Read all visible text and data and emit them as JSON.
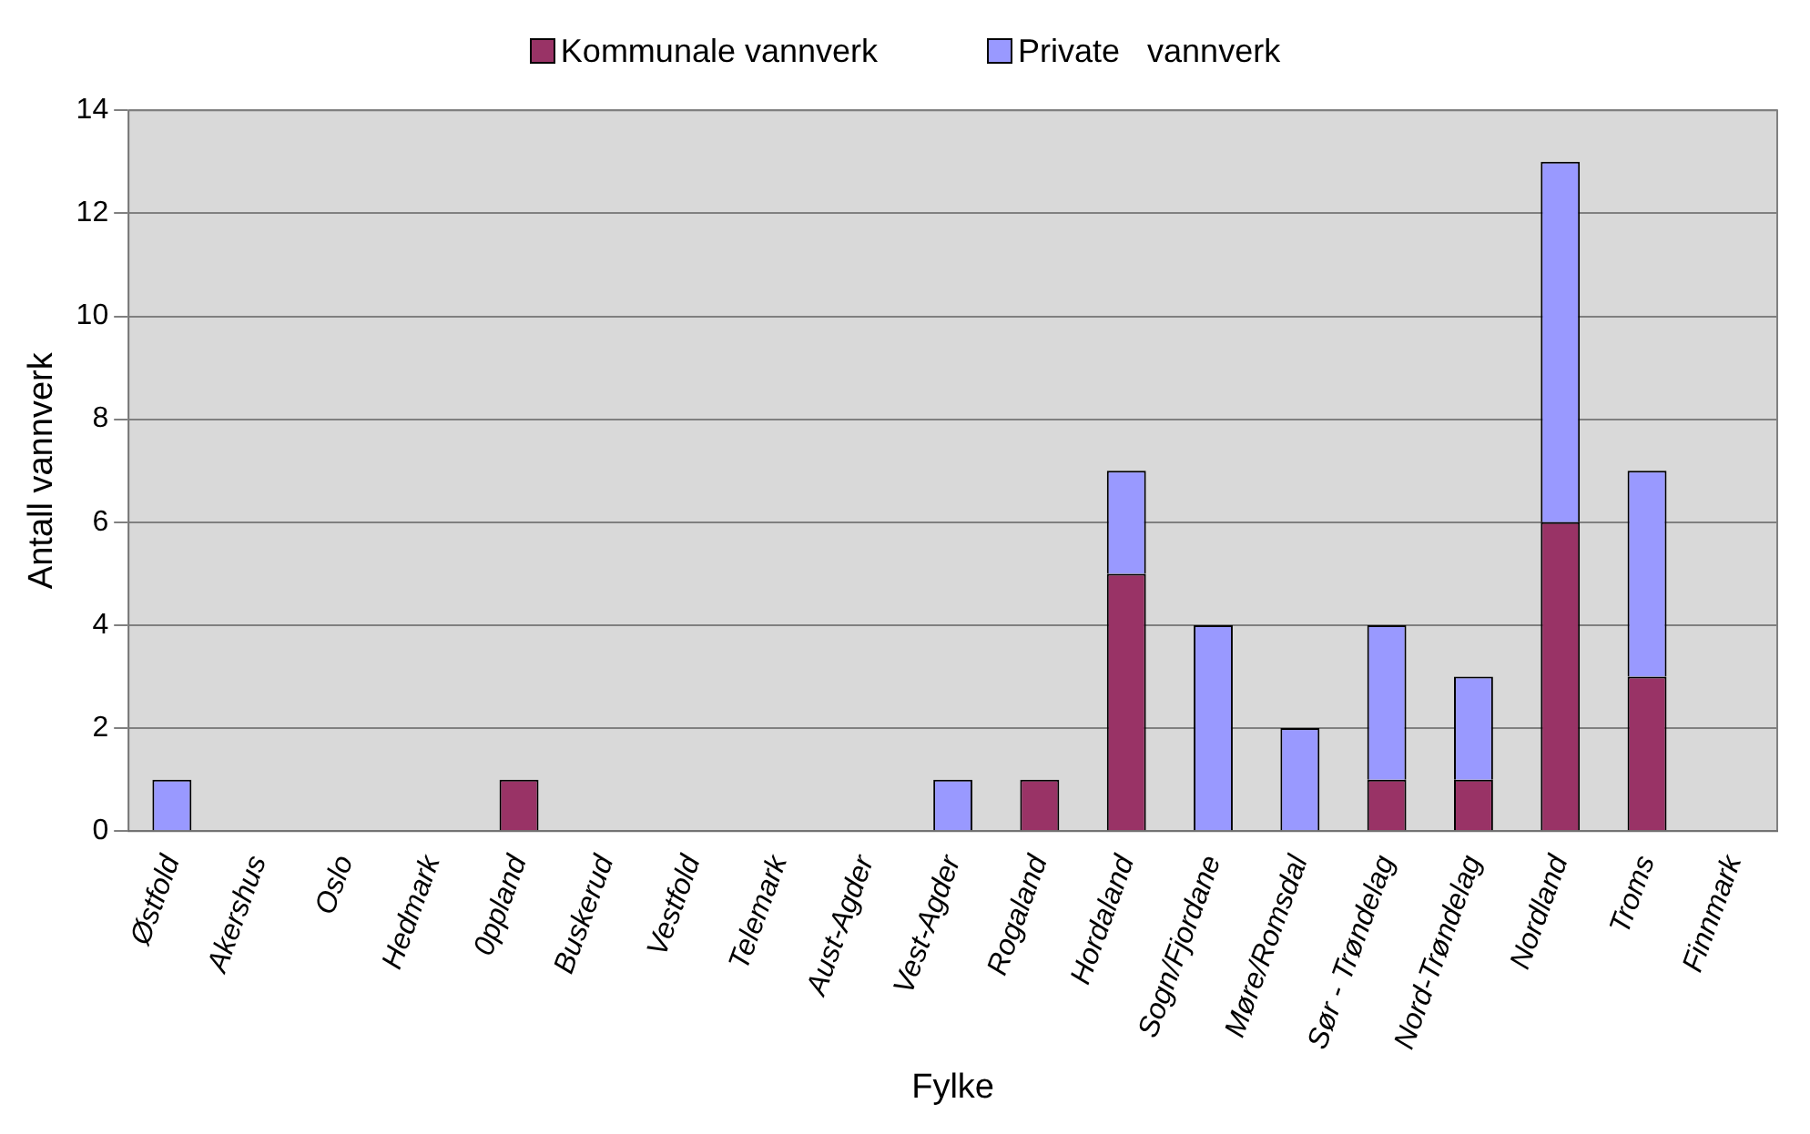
{
  "chart_data": {
    "type": "bar",
    "stacked": true,
    "xlabel": "Fylke",
    "ylabel": "Antall vannverk",
    "categories": [
      "Østfold",
      "Akershus",
      "Oslo",
      "Hedmark",
      "0ppland",
      "Buskerud",
      "Vestfold",
      "Telemark",
      "Aust-Agder",
      "Vest-Agder",
      "Rogaland",
      "Hordaland",
      "Sogn/Fjordane",
      "Møre/Romsdal",
      "Sør - Trøndelag",
      "Nord-Trøndelag",
      "Nordland",
      "Troms",
      "Finnmark"
    ],
    "series": [
      {
        "name": "Kommunale vannverk",
        "color": "#993366",
        "values": [
          0,
          0,
          0,
          0,
          1,
          0,
          0,
          0,
          0,
          0,
          1,
          5,
          0,
          0,
          1,
          1,
          6,
          3,
          0
        ]
      },
      {
        "name": "Private   vannverk",
        "color": "#9999ff",
        "values": [
          1,
          0,
          0,
          0,
          0,
          0,
          0,
          0,
          0,
          1,
          0,
          2,
          4,
          2,
          3,
          2,
          7,
          4,
          0
        ]
      }
    ],
    "ylim": [
      0,
      14
    ],
    "yticks": [
      0,
      2,
      4,
      6,
      8,
      10,
      12,
      14
    ],
    "grid": "y",
    "legend": "top"
  }
}
